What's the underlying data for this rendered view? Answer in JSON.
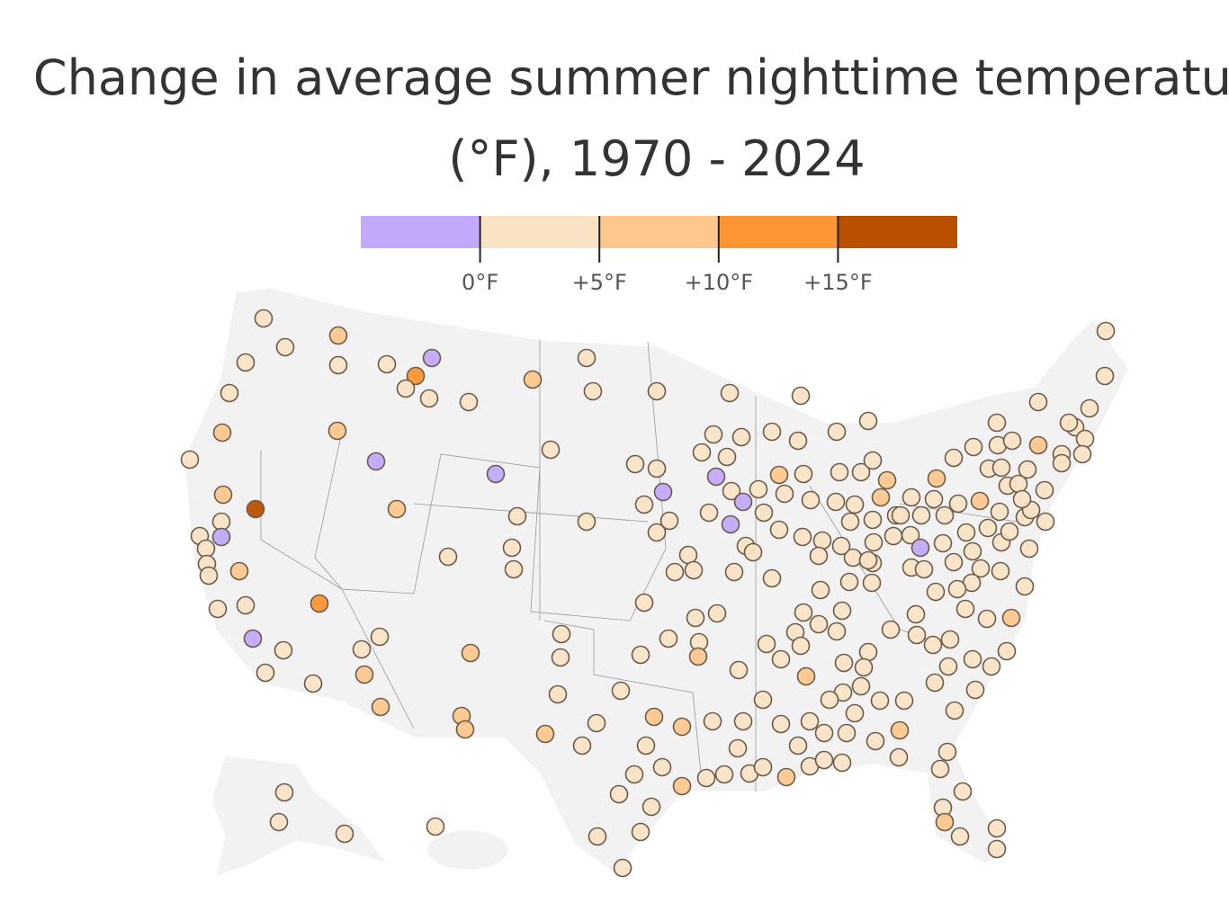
{
  "title_lines": [
    "Change in average summer nighttime temperature",
    "(°F), 1970 - 2024"
  ],
  "legend": {
    "range": [
      -5,
      20
    ],
    "ticks": [
      {
        "value": 0,
        "label": "0°F"
      },
      {
        "value": 5,
        "label": "+5°F"
      },
      {
        "value": 10,
        "label": "+10°F"
      },
      {
        "value": 15,
        "label": "+15°F"
      }
    ],
    "colors": [
      "#c3a9fb",
      "#f8e3c5",
      "#fdc78d",
      "#fd9534",
      "#b95000"
    ]
  }
}
